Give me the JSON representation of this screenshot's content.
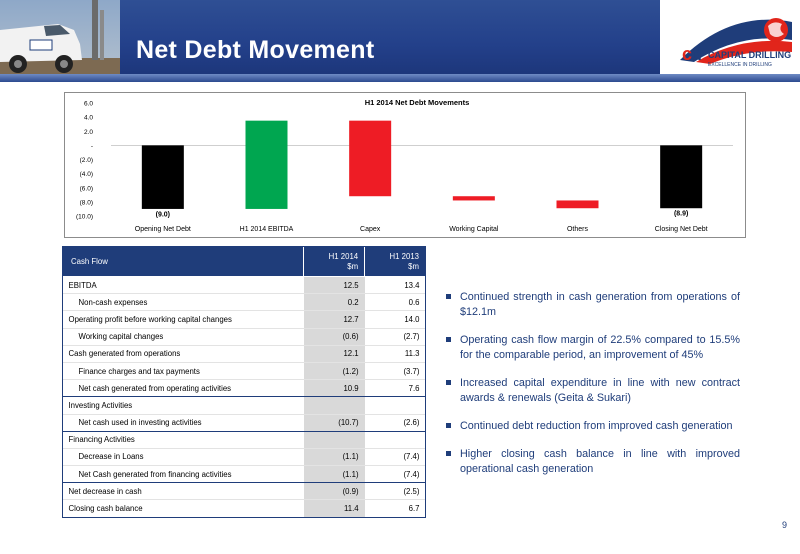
{
  "header": {
    "title": "Net Debt Movement",
    "logo_name": "CAPITAL DRILLING",
    "logo_tagline": "EXCELLENCE IN DRILLING",
    "colors": {
      "navy": "#23408a",
      "logo_red": "#e1251b",
      "logo_blue": "#1f3d7a"
    }
  },
  "chart_data": {
    "type": "bar",
    "subtype": "waterfall",
    "title": "H1 2014 Net Debt Movements",
    "categories": [
      "Opening Net Debt",
      "H1 2014 EBITDA",
      "Capex",
      "Working Capital",
      "Others",
      "Closing Net Debt"
    ],
    "bars": [
      {
        "category": "Opening Net Debt",
        "start": 0,
        "end": -9.0,
        "color": "#000000",
        "label": "(9.0)"
      },
      {
        "category": "H1 2014 EBITDA",
        "start": -9.0,
        "end": 3.5,
        "color": "#00a650",
        "label": ""
      },
      {
        "category": "Capex",
        "start": 3.5,
        "end": -7.2,
        "color": "#ee1c25",
        "label": ""
      },
      {
        "category": "Working Capital",
        "start": -7.2,
        "end": -7.8,
        "color": "#ee1c25",
        "label": ""
      },
      {
        "category": "Others",
        "start": -7.8,
        "end": -8.9,
        "color": "#ee1c25",
        "label": ""
      },
      {
        "category": "Closing Net Debt",
        "start": 0,
        "end": -8.9,
        "color": "#000000",
        "label": "(8.9)"
      }
    ],
    "yticks": [
      6.0,
      4.0,
      2.0,
      0,
      -2.0,
      -4.0,
      -6.0,
      -8.0,
      -10.0
    ],
    "ytick_labels": [
      "6.0",
      "4.0",
      "2.0",
      "-",
      "(2.0)",
      "(4.0)",
      "(6.0)",
      "(8.0)",
      "(10.0)"
    ],
    "ylim": [
      -10,
      6
    ],
    "grid": false,
    "legend": "none"
  },
  "table": {
    "headers": {
      "label": "Cash Flow",
      "col1_line1": "H1 2014",
      "col1_line2": "$m",
      "col2_line1": "H1 2013",
      "col2_line2": "$m"
    },
    "rows": [
      {
        "label": "EBITDA",
        "v1": "12.5",
        "v2": "13.4",
        "indent": false,
        "section_top": false
      },
      {
        "label": "Non-cash expenses",
        "v1": "0.2",
        "v2": "0.6",
        "indent": true,
        "section_top": false
      },
      {
        "label": "Operating profit before working capital changes",
        "v1": "12.7",
        "v2": "14.0",
        "indent": false,
        "section_top": false
      },
      {
        "label": "Working capital changes",
        "v1": "(0.6)",
        "v2": "(2.7)",
        "indent": true,
        "section_top": false
      },
      {
        "label": "Cash generated from operations",
        "v1": "12.1",
        "v2": "11.3",
        "indent": false,
        "section_top": false
      },
      {
        "label": "Finance charges and tax payments",
        "v1": "(1.2)",
        "v2": "(3.7)",
        "indent": true,
        "section_top": false
      },
      {
        "label": "Net cash generated from operating activities",
        "v1": "10.9",
        "v2": "7.6",
        "indent": true,
        "section_top": false
      },
      {
        "label": "Investing Activities",
        "v1": "",
        "v2": "",
        "indent": false,
        "section_top": true
      },
      {
        "label": "Net cash used in investing activities",
        "v1": "(10.7)",
        "v2": "(2.6)",
        "indent": true,
        "section_top": false
      },
      {
        "label": "Financing Activities",
        "v1": "",
        "v2": "",
        "indent": false,
        "section_top": true
      },
      {
        "label": "Decrease in Loans",
        "v1": "(1.1)",
        "v2": "(7.4)",
        "indent": true,
        "section_top": false
      },
      {
        "label": "Net Cash generated from financing activities",
        "v1": "(1.1)",
        "v2": "(7.4)",
        "indent": true,
        "section_top": false
      },
      {
        "label": "Net decrease in cash",
        "v1": "(0.9)",
        "v2": "(2.5)",
        "indent": false,
        "section_top": true
      },
      {
        "label": "Closing cash balance",
        "v1": "11.4",
        "v2": "6.7",
        "indent": false,
        "section_top": false
      }
    ]
  },
  "bullets": [
    "Continued strength in cash generation from operations of $12.1m",
    "Operating cash flow margin of 22.5% compared to 15.5% for the comparable period, an improvement of 45%",
    "Increased capital expenditure in line with new contract awards & renewals (Geita & Sukari)",
    "Continued debt reduction from improved cash generation",
    "Higher closing cash balance in line with improved operational cash generation"
  ],
  "page_number": "9"
}
